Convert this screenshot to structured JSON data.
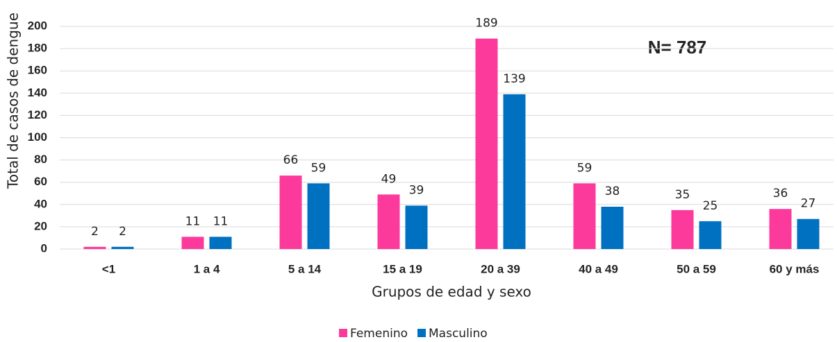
{
  "chart_data": {
    "type": "bar",
    "annotation": "N= 787",
    "x_label": "Grupos de edad y sexo",
    "y_label": "Total de casos de dengue",
    "categories": [
      "<1",
      "1 a 4",
      "5 a 14",
      "15 a 19",
      "20 a 39",
      "40 a 49",
      "50 a 59",
      "60 y más"
    ],
    "series": [
      {
        "name": "Femenino",
        "color": "#fc3a9b",
        "values": [
          2,
          11,
          66,
          49,
          189,
          59,
          35,
          36
        ]
      },
      {
        "name": "Masculino",
        "color": "#0070c0",
        "values": [
          2,
          11,
          59,
          39,
          139,
          38,
          25,
          27
        ]
      }
    ],
    "ylim": [
      0,
      200
    ],
    "yticks": [
      0,
      20,
      40,
      60,
      80,
      100,
      120,
      140,
      160,
      180,
      200
    ],
    "grid": true,
    "legend": "bottom"
  }
}
